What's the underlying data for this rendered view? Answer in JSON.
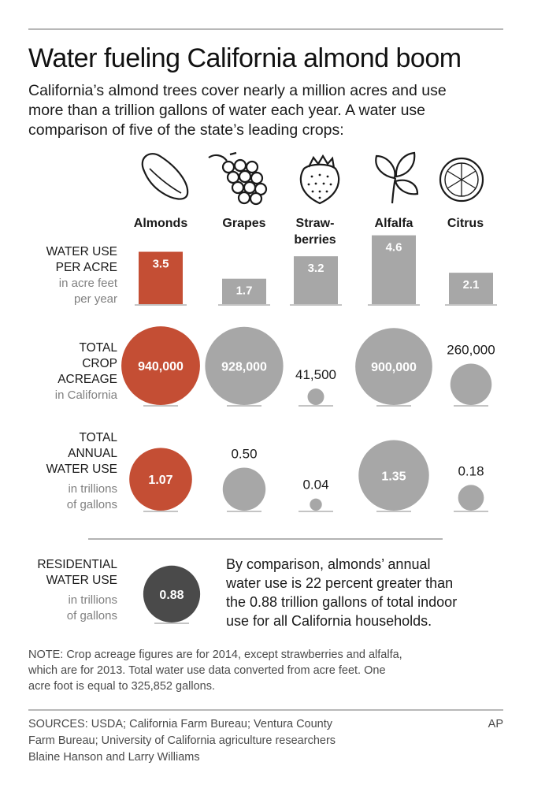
{
  "header": {
    "title": "Water fueling California almond boom",
    "intro_lines": [
      "California’s almond trees cover nearly a million acres and use",
      "more than a trillion gallons of water each year. A water use",
      "comparison of five of the state’s leading crops:"
    ]
  },
  "colors": {
    "almonds": "#c44e34",
    "other_crops": "#a7a7a7",
    "residential": "#4a4a4a",
    "baseline": "#b0b0b0"
  },
  "crops": [
    {
      "label_lines": [
        "Almonds"
      ],
      "icon": "almond-icon"
    },
    {
      "label_lines": [
        "Grapes"
      ],
      "icon": "grapes-icon"
    },
    {
      "label_lines": [
        "Straw-",
        "berries"
      ],
      "icon": "strawberry-icon"
    },
    {
      "label_lines": [
        "Alfalfa"
      ],
      "icon": "alfalfa-leaf-icon"
    },
    {
      "label_lines": [
        "Citrus"
      ],
      "icon": "citrus-slice-icon"
    }
  ],
  "rows": {
    "water_per_acre": {
      "caption_lines": [
        "WATER USE",
        "PER ACRE"
      ],
      "sub_lines": [
        "in acre feet",
        "per year"
      ]
    },
    "acreage": {
      "caption_lines": [
        "TOTAL",
        "CROP",
        "ACREAGE"
      ],
      "sub_lines": [
        "in California"
      ]
    },
    "annual_use": {
      "caption_lines": [
        "TOTAL",
        "ANNUAL",
        "WATER USE"
      ],
      "sub_lines": [
        "in trillions",
        "of gallons"
      ]
    },
    "residential": {
      "caption_lines": [
        "RESIDENTIAL",
        "WATER USE"
      ],
      "sub_lines": [
        "in trillions",
        "of gallons"
      ]
    }
  },
  "chart_data": [
    {
      "type": "bar",
      "title": "WATER USE PER ACRE",
      "categories": [
        "Almonds",
        "Grapes",
        "Strawberries",
        "Alfalfa",
        "Citrus"
      ],
      "values": [
        3.5,
        1.7,
        3.2,
        4.6,
        2.1
      ],
      "value_labels": [
        "3.5",
        "1.7",
        "3.2",
        "4.6",
        "2.1"
      ]
    },
    {
      "type": "scatter",
      "title": "TOTAL CROP ACREAGE",
      "categories": [
        "Almonds",
        "Grapes",
        "Strawberries",
        "Alfalfa",
        "Citrus"
      ],
      "values": [
        940000,
        928000,
        41500,
        900000,
        260000
      ],
      "value_labels": [
        "940,000",
        "928,000",
        "41,500",
        "900,000",
        "260,000"
      ]
    },
    {
      "type": "scatter",
      "title": "TOTAL ANNUAL WATER USE",
      "categories": [
        "Almonds",
        "Grapes",
        "Strawberries",
        "Alfalfa",
        "Citrus"
      ],
      "values": [
        1.07,
        0.5,
        0.04,
        1.35,
        0.18
      ],
      "value_labels": [
        "1.07",
        "0.50",
        "0.04",
        "1.35",
        "0.18"
      ]
    },
    {
      "type": "scatter",
      "title": "RESIDENTIAL WATER USE",
      "categories": [
        ""
      ],
      "values": [
        0.88
      ],
      "value_labels": [
        "0.88"
      ]
    }
  ],
  "comparison_lines": [
    "By comparison, almonds’ annual",
    "water use is 22 percent greater than",
    "the 0.88 trillion gallons of total indoor",
    "use for all California households."
  ],
  "note_lines": [
    "NOTE: Crop acreage figures are for 2014, except strawberries and alfalfa,",
    "which are for 2013. Total water use data converted from acre feet. One",
    "acre foot is equal to 325,852 gallons."
  ],
  "source_lines": [
    "SOURCES: USDA; California Farm Bureau; Ventura County",
    "Farm Bureau; University of California agriculture researchers",
    "Blaine Hanson and Larry Williams"
  ],
  "credit": "AP"
}
